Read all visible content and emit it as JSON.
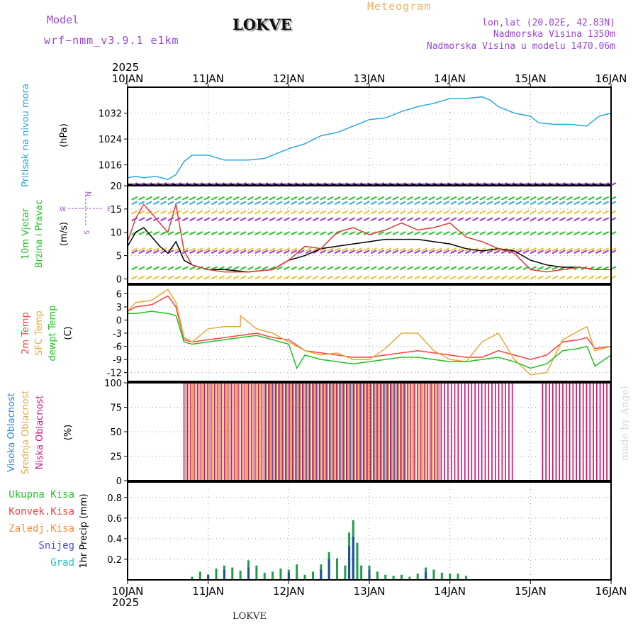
{
  "header": {
    "model_label": "Model",
    "model_name": "wrf−nmm_v3.9.1  e1km",
    "station": "LOKVE",
    "title": "Meteogram",
    "lonlat": "lon,lat (20.02E, 42.83N)",
    "altitude": "Nadmorska Visina 1350m",
    "model_altitude": "Nadmorska Visina u modelu 1470.06m",
    "watermark": "made by Angel",
    "footer_station": "LOKVE"
  },
  "colors": {
    "pressure": "#2aa7e0",
    "temp2m": "#ff3f3f",
    "sfc_temp": "#e8a83a",
    "dewpoint": "#22c322",
    "wind_speed": "#000000",
    "gust": "#e03a3a",
    "cloud_high": "#2e86d6",
    "cloud_mid": "#e8a83a",
    "cloud_low": "#c9127a",
    "precip_total": "#1f9e4a",
    "precip_conv": "#1e4f9c",
    "header_purple": "#9a45d8",
    "header_orange": "#f0b060"
  },
  "chart_data": {
    "type": "line",
    "x_axis": {
      "year": "2025",
      "ticks": [
        "10JAN",
        "11JAN",
        "12JAN",
        "13JAN",
        "14JAN",
        "15JAN",
        "16JAN"
      ],
      "range_days": [
        0,
        6
      ]
    },
    "panels": [
      {
        "id": "pressure",
        "ylabels": [
          "Pritisak na nivou mora",
          "(hPa)"
        ],
        "ylim": [
          1010,
          1040
        ],
        "yticks": [
          1016,
          1024,
          1032
        ],
        "series": [
          {
            "label": "Pritisak na nivou mora",
            "color": "#2aa7e0",
            "x": [
              0,
              0.1,
              0.2,
              0.35,
              0.5,
              0.6,
              0.7,
              0.8,
              1.0,
              1.2,
              1.5,
              1.7,
              2.0,
              2.2,
              2.4,
              2.6,
              2.8,
              3.0,
              3.2,
              3.4,
              3.6,
              3.8,
              4.0,
              4.2,
              4.4,
              4.5,
              4.6,
              4.8,
              5.0,
              5.1,
              5.3,
              5.5,
              5.7,
              5.85,
              6.0
            ],
            "y": [
              1012,
              1012.5,
              1012,
              1012.5,
              1011.5,
              1013,
              1017,
              1019,
              1019,
              1017.5,
              1017.5,
              1018,
              1021,
              1022.5,
              1025,
              1026,
              1028,
              1030,
              1030.5,
              1032.5,
              1034,
              1035,
              1036.5,
              1036.5,
              1037,
              1036,
              1034,
              1032,
              1031,
              1029,
              1028.5,
              1028.5,
              1028,
              1031,
              1032
            ]
          }
        ]
      },
      {
        "id": "wind",
        "ylabels": [
          "10m Vjetar",
          "Brzina i Pravac",
          "(m/s)"
        ],
        "compass": [
          "N",
          "W",
          "E",
          "S"
        ],
        "ylim": [
          -1,
          20
        ],
        "yticks": [
          0,
          5,
          10,
          15,
          20
        ],
        "series": [
          {
            "label": "wind speed",
            "color": "#000000",
            "x": [
              0,
              0.1,
              0.2,
              0.3,
              0.4,
              0.5,
              0.6,
              0.7,
              0.8,
              1.0,
              1.2,
              1.5,
              1.8,
              2.0,
              2.2,
              2.4,
              2.6,
              2.8,
              3.0,
              3.2,
              3.4,
              3.6,
              3.8,
              4.0,
              4.2,
              4.4,
              4.6,
              4.8,
              5.0,
              5.2,
              5.4,
              5.6,
              5.8,
              6.0
            ],
            "y": [
              7,
              10,
              11,
              9,
              7,
              5.5,
              8,
              4,
              3,
              2,
              2,
              1.5,
              2,
              4,
              5,
              6.5,
              7,
              7.5,
              8,
              8.5,
              8.5,
              8.5,
              8,
              7.5,
              6.5,
              6,
              6.5,
              6,
              4,
              3,
              2.5,
              2.5,
              2,
              2
            ]
          },
          {
            "label": "gust",
            "color": "#e03a3a",
            "x": [
              0,
              0.1,
              0.2,
              0.3,
              0.4,
              0.5,
              0.6,
              0.7,
              0.8,
              1.0,
              1.2,
              1.5,
              1.8,
              2.0,
              2.2,
              2.4,
              2.6,
              2.8,
              3.0,
              3.2,
              3.4,
              3.6,
              3.8,
              4.0,
              4.2,
              4.4,
              4.6,
              4.8,
              5.0,
              5.2,
              5.4,
              5.6,
              5.8,
              6.0
            ],
            "y": [
              8,
              13,
              16,
              14,
              12,
              10,
              16,
              6,
              3,
              2,
              1.5,
              1.5,
              2,
              4,
              7,
              6.5,
              10,
              11,
              9.5,
              10.5,
              12,
              10.5,
              11,
              12,
              9,
              8,
              6.5,
              5.5,
              2,
              1.5,
              2,
              2.5,
              2,
              2
            ]
          }
        ],
        "barb_rows": [
          {
            "level": 0,
            "color": "#e8c53a"
          },
          {
            "level": 2,
            "color": "#22c322"
          },
          {
            "level": 5.5,
            "color": "#9b30d8"
          },
          {
            "level": 6,
            "color": "#e8c53a"
          },
          {
            "level": 9.5,
            "color": "#22c322"
          },
          {
            "level": 12.5,
            "color": "#9b30d8"
          },
          {
            "level": 14,
            "color": "#e8c53a"
          },
          {
            "level": 16,
            "color": "#2aa7e0"
          },
          {
            "level": 17,
            "color": "#22c322"
          },
          {
            "level": 20,
            "color": "#9b30d8"
          }
        ]
      },
      {
        "id": "temperature",
        "ylabels": [
          "2m Temp",
          "SFC Temp",
          "dewpt Temp",
          "(C)"
        ],
        "ylim": [
          -14,
          8
        ],
        "yticks": [
          6,
          3,
          0,
          -3,
          -6,
          -9,
          -12
        ],
        "series": [
          {
            "label": "2m Temp",
            "color": "#ff3f3f",
            "x": [
              0,
              0.1,
              0.3,
              0.5,
              0.6,
              0.7,
              0.8,
              1.0,
              1.2,
              1.4,
              1.6,
              1.8,
              2.0,
              2.2,
              2.4,
              2.6,
              2.8,
              3.0,
              3.2,
              3.4,
              3.6,
              3.8,
              4.0,
              4.2,
              4.4,
              4.6,
              4.8,
              5.0,
              5.2,
              5.4,
              5.6,
              5.7,
              5.8,
              6.0
            ],
            "y": [
              2,
              3,
              3.5,
              5.5,
              3,
              -4.5,
              -5,
              -4.5,
              -4,
              -3.5,
              -3,
              -4,
              -4.5,
              -7,
              -7.5,
              -8,
              -8.5,
              -8.5,
              -8,
              -7.5,
              -7,
              -7.5,
              -8,
              -8.5,
              -8.5,
              -7,
              -8,
              -9,
              -8,
              -5,
              -4.5,
              -4,
              -6.5,
              -6
            ]
          },
          {
            "label": "SFC Temp",
            "color": "#e8a83a",
            "x": [
              0,
              0.1,
              0.3,
              0.5,
              0.6,
              0.7,
              0.8,
              1.0,
              1.2,
              1.4,
              1.4,
              1.6,
              1.8,
              2.0,
              2.2,
              2.4,
              2.6,
              2.8,
              3.0,
              3.2,
              3.4,
              3.6,
              3.8,
              4.0,
              4.2,
              4.4,
              4.6,
              4.8,
              5.0,
              5.2,
              5.4,
              5.6,
              5.7,
              5.8,
              6.0
            ],
            "y": [
              2,
              4,
              4.5,
              7,
              4,
              -4,
              -5,
              -2,
              -1.5,
              -1.5,
              1,
              -2,
              -3,
              -5,
              -7,
              -8,
              -7.5,
              -9,
              -9,
              -6.5,
              -3,
              -3,
              -7,
              -9,
              -9.5,
              -5,
              -3,
              -9,
              -12.5,
              -12,
              -4.5,
              -2.5,
              -1.5,
              -7,
              -6
            ]
          },
          {
            "label": "dewpt Temp",
            "color": "#22c322",
            "x": [
              0,
              0.1,
              0.3,
              0.5,
              0.6,
              0.7,
              0.8,
              1.0,
              1.2,
              1.4,
              1.6,
              1.8,
              2.0,
              2.1,
              2.2,
              2.4,
              2.6,
              2.8,
              3.0,
              3.2,
              3.4,
              3.6,
              3.8,
              4.0,
              4.2,
              4.4,
              4.6,
              4.8,
              5.0,
              5.2,
              5.4,
              5.6,
              5.7,
              5.8,
              6.0
            ],
            "y": [
              1.5,
              1.5,
              2,
              1.5,
              1,
              -5,
              -5.5,
              -5,
              -4.5,
              -4,
              -3.5,
              -4.5,
              -5.5,
              -11,
              -8,
              -9,
              -9.5,
              -10,
              -9.5,
              -9,
              -8.5,
              -8.5,
              -9,
              -9.5,
              -9.5,
              -9,
              -8.5,
              -9.5,
              -11,
              -10,
              -7,
              -6.5,
              -6,
              -10.5,
              -8
            ]
          }
        ]
      },
      {
        "id": "clouds",
        "ylabels": [
          "Visoka Oblacnost",
          "Srednja Oblacnost",
          "Niska Oblacnost",
          "(%)"
        ],
        "ylim": [
          0,
          100
        ],
        "yticks": [
          0,
          25,
          50,
          75,
          100
        ],
        "series": [
          {
            "label": "Visoka Oblacnost",
            "color": "#2e86d6",
            "active_intervals": [
              [
                1.72,
                3.45
              ]
            ]
          },
          {
            "label": "Srednja Oblacnost",
            "color": "#e8a83a",
            "active_intervals": [
              [
                0.72,
                3.9
              ],
              [
                5.15,
                6.0
              ]
            ]
          },
          {
            "label": "Niska Oblacnost",
            "color": "#c9127a",
            "active_intervals": [
              [
                0.7,
                4.8
              ],
              [
                5.15,
                6.0
              ]
            ]
          }
        ]
      },
      {
        "id": "precip",
        "ylabels": [
          "1hr Precip (mm)"
        ],
        "ylim": [
          0,
          0.95
        ],
        "yticks": [
          0.2,
          0.4,
          0.6,
          0.8
        ],
        "legend": [
          {
            "label": "Ukupna Kisa",
            "color": "#22c322"
          },
          {
            "label": "Konvek.Kisa",
            "color": "#ff3f3f"
          },
          {
            "label": "Zaledj.Kisa",
            "color": "#ff8c2a"
          },
          {
            "label": "Snijeg",
            "color": "#4a4adc"
          },
          {
            "label": "Grad",
            "color": "#22c3c3"
          }
        ],
        "series": [
          {
            "label": "Ukupna Kisa",
            "color": "#1f9e4a",
            "x": [
              0.8,
              0.9,
              1.0,
              1.1,
              1.2,
              1.3,
              1.4,
              1.5,
              1.6,
              1.7,
              1.8,
              1.9,
              2.0,
              2.1,
              2.2,
              2.3,
              2.4,
              2.5,
              2.6,
              2.7,
              2.75,
              2.8,
              2.85,
              2.9,
              3.0,
              3.1,
              3.2,
              3.3,
              3.4,
              3.5,
              3.6,
              3.7,
              3.8,
              3.9,
              4.0,
              4.1,
              4.2
            ],
            "y": [
              0.03,
              0.08,
              0.05,
              0.11,
              0.14,
              0.12,
              0.09,
              0.19,
              0.14,
              0.07,
              0.08,
              0.11,
              0.1,
              0.15,
              0.05,
              0.08,
              0.15,
              0.27,
              0.21,
              0.14,
              0.46,
              0.58,
              0.36,
              0.14,
              0.14,
              0.08,
              0.05,
              0.04,
              0.05,
              0.03,
              0.06,
              0.12,
              0.1,
              0.07,
              0.06,
              0.06,
              0.04
            ]
          },
          {
            "label": "Konvek.Kisa",
            "color": "#1e4f9c",
            "x": [
              1.0,
              1.2,
              1.5,
              2.0,
              2.4,
              2.5,
              2.75,
              2.8,
              3.0,
              3.7
            ],
            "y": [
              0.05,
              0.1,
              0.12,
              0.07,
              0.1,
              0.2,
              0.33,
              0.42,
              0.1,
              0.08
            ]
          }
        ]
      }
    ]
  }
}
